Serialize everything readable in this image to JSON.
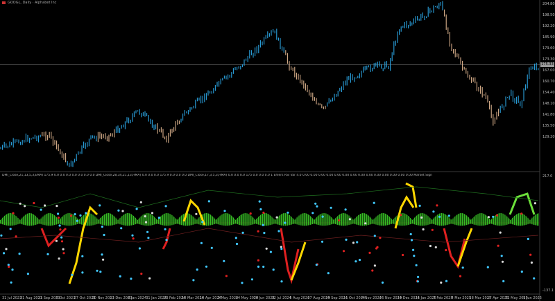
{
  "header": {
    "symbol_line": "GOOGL, Daily · Alphabet Inc"
  },
  "indicator_header": {
    "text": "DMI_Close,21,13,5,3,EMA) 175.9 0.0 0.0 0.0 0.0 0.0 0.0 0.0 DMI_Close,28,34,21,13,HMA) 0.0 0.0 0.0 175.9 0.0 0.0 0.0 DMI_Close,17,3,5,3,HMA) 0.0 0.0 0.0 175 0.0 0.0 0.0 1 Ehlers RSI Var 4.0 0.00 0.00 0.00 0.00 0.00 0.00 0.00 0.00 0.00 0.00 0.00 0.00 0.00 0.00 Market Signal (Adaptive) (Normalized) (Momentum) 0.000 0.000 0.000 0.000"
  },
  "price_axis": {
    "labels": [
      "204.80",
      "198.50",
      "192.20",
      "185.90",
      "179.60",
      "173.30",
      "167.00",
      "160.70",
      "154.40",
      "148.10",
      "141.80",
      "135.50",
      "129.20"
    ],
    "current_price": "175.33"
  },
  "indicator_axis": {
    "labels": [
      "217.0",
      "-137.1"
    ]
  },
  "time_axis": {
    "labels": [
      "31 Jul 2023",
      "21 Aug 2023",
      "11 Sep 2023",
      "5 Oct 2023",
      "27 Oct 2023",
      "20 Nov 2023",
      "13 Dec 2023",
      "8 Jan 2024",
      "31 Jan 2024",
      "23 Feb 2024",
      "18 Mar 2024",
      "10 Apr 2024",
      "2 May 2024",
      "24 May 2024",
      "18 Jun 2024",
      "12 Jul 2024",
      "5 Aug 2024",
      "27 Aug 2024",
      "19 Sep 2024",
      "11 Oct 2024",
      "4 Nov 2024",
      "26 Nov 2024",
      "19 Dec 2024",
      "15 Jan 2025",
      "7 Feb 2025",
      "4 Mar 2025",
      "28 Mar 2025",
      "17 Apr 2025",
      "12 May 2025",
      "5 Jun 2025"
    ]
  },
  "colors": {
    "bull": "#2ba3e0",
    "bear": "#d9b08c",
    "histogram": "#3fdc2a",
    "yellow": "#ffd700",
    "green": "#6ce03a",
    "red": "#e02020",
    "cyan": "#40c8ff"
  }
}
